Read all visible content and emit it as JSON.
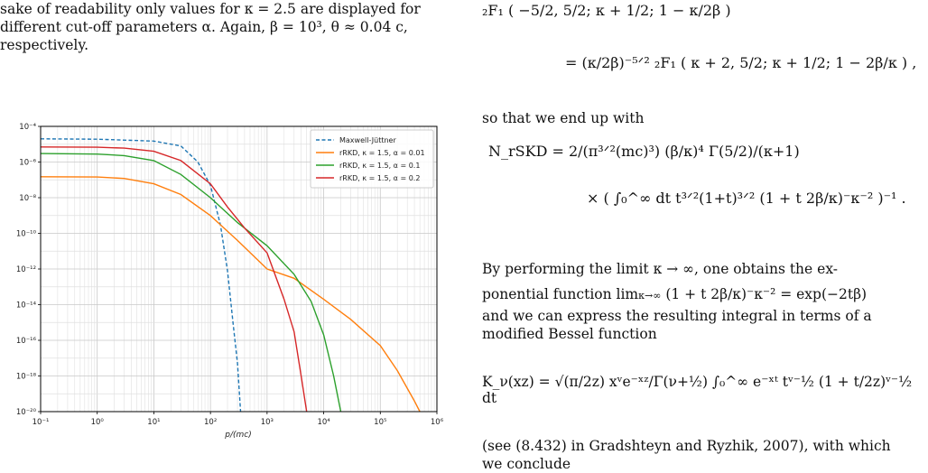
{
  "left_text": {
    "line1": "sake of readability only values for κ = 2.5 are displayed for",
    "line2": "different cut-off parameters α.  Again, β = 10³, θ ≈ 0.04 c,",
    "line3": "respectively."
  },
  "right_text": {
    "intro": "so that we end up with",
    "limit_line1": "By performing the limit κ → ∞, one obtains the ex-",
    "limit_line2": "ponential function lim",
    "limit_line3": "and we can express the resulting integral in terms of a",
    "limit_line4": "modified Bessel function",
    "ref_line": "(see (8.432) in Gradshteyn and Ryzhik, 2007), with which",
    "ref_line2": "we conclude"
  },
  "equations": {
    "hyper_top": "₂F₁ ( −5/2, 5/2; κ + 1/2; 1 − κ/2β )",
    "hyper_eq": "= (κ/2β)⁻⁵ᐟ² ₂F₁ ( κ + 2, 5/2; κ + 1/2; 1 − 2β/κ ) ,",
    "n_rskd": "N_rSKD = 2/(π³ᐟ²(mc)³) (β/κ)⁴ Γ(5/2)/(κ+1)",
    "n_rskd_int": "× ( ∫₀^∞ dt t³ᐟ²(1+t)³ᐟ² (1 + t 2β/κ)⁻κ⁻² )⁻¹ .",
    "lim_expr": "(1 + t 2β/κ)⁻κ⁻² = exp(−2tβ)",
    "bessel": "K_ν(xz) = √(π/2z) xᵛe⁻ˣᶻ/Γ(ν+½) ∫₀^∞ e⁻ˣᵗ tᵛ⁻½ (1 + t/2z)ᵛ⁻½ dt"
  },
  "chart_data": {
    "type": "line",
    "xlabel": "p/(mc)",
    "ylabel": "",
    "x_scale": "log",
    "y_scale": "log",
    "xlim": [
      0.1,
      1000000
    ],
    "ylim": [
      1e-20,
      0.0001
    ],
    "x_ticks": [
      "10⁻¹",
      "10⁰",
      "10¹",
      "10²",
      "10³",
      "10⁴",
      "10⁵",
      "10⁶"
    ],
    "y_ticks": [
      "10⁻⁴",
      "10⁻⁶",
      "10⁻⁸",
      "10⁻¹⁰",
      "10⁻¹²",
      "10⁻¹⁴",
      "10⁻¹⁶",
      "10⁻¹⁸",
      "10⁻²⁰"
    ],
    "grid": true,
    "legend_position": "top-right",
    "series": [
      {
        "name": "Maxwell-Jüttner",
        "color": "#1f77b4",
        "dashed": true,
        "points": [
          [
            0.1,
            2e-05
          ],
          [
            1,
            1.9e-05
          ],
          [
            10,
            1.5e-05
          ],
          [
            30,
            8e-06
          ],
          [
            60,
            1e-06
          ],
          [
            100,
            5e-08
          ],
          [
            150,
            3e-10
          ],
          [
            200,
            8e-13
          ],
          [
            250,
            1e-15
          ],
          [
            300,
            5e-18
          ],
          [
            340,
            1e-20
          ]
        ]
      },
      {
        "name": "rRKD, κ = 1.5, α = 0.01",
        "color": "#ff7f0e",
        "dashed": false,
        "points": [
          [
            0.1,
            1.5e-07
          ],
          [
            1,
            1.45e-07
          ],
          [
            3,
            1.2e-07
          ],
          [
            10,
            6e-08
          ],
          [
            30,
            1.5e-08
          ],
          [
            100,
            1e-09
          ],
          [
            300,
            4e-11
          ],
          [
            1000,
            1e-12
          ],
          [
            3000,
            3e-13
          ],
          [
            10000,
            2e-14
          ],
          [
            30000,
            1.5e-15
          ],
          [
            100000,
            5e-17
          ],
          [
            200000,
            2e-18
          ],
          [
            400000,
            4e-20
          ],
          [
            500000,
            1e-20
          ]
        ]
      },
      {
        "name": "rRKD, κ = 1.5, α = 0.1",
        "color": "#2ca02c",
        "dashed": false,
        "points": [
          [
            0.1,
            3e-06
          ],
          [
            1,
            2.8e-06
          ],
          [
            3,
            2.3e-06
          ],
          [
            10,
            1.2e-06
          ],
          [
            30,
            2e-07
          ],
          [
            100,
            1e-08
          ],
          [
            300,
            4e-10
          ],
          [
            1000,
            2e-11
          ],
          [
            3000,
            5e-13
          ],
          [
            6000,
            1.5e-14
          ],
          [
            10000,
            2e-16
          ],
          [
            15000,
            1e-18
          ],
          [
            20000,
            1e-20
          ]
        ]
      },
      {
        "name": "rRKD, κ = 1.5, α = 0.2",
        "color": "#d62728",
        "dashed": false,
        "points": [
          [
            0.1,
            7e-06
          ],
          [
            1,
            6.8e-06
          ],
          [
            3,
            6e-06
          ],
          [
            10,
            4e-06
          ],
          [
            30,
            1.2e-06
          ],
          [
            100,
            6e-08
          ],
          [
            200,
            3e-09
          ],
          [
            400,
            2e-10
          ],
          [
            1000,
            8e-12
          ],
          [
            2000,
            2e-14
          ],
          [
            3000,
            3e-16
          ],
          [
            4000,
            1e-18
          ],
          [
            5000,
            1e-20
          ]
        ]
      }
    ]
  }
}
